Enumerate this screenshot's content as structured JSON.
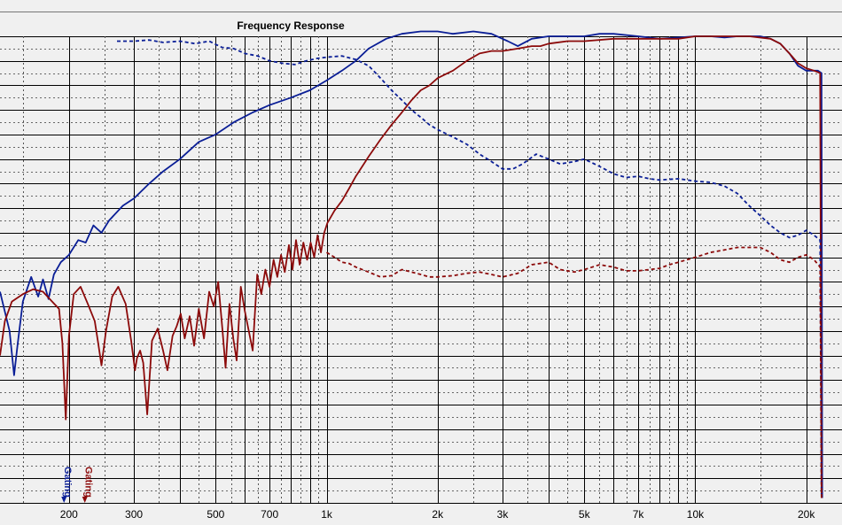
{
  "colors": {
    "background": "#f0f0f0",
    "grid": "#000000",
    "blue": "#0a1e96",
    "red": "#8c0a0a"
  },
  "chart_data": {
    "type": "line",
    "title": "Frequency Response",
    "x_scale": "log",
    "xlim": [
      130,
      25000
    ],
    "ylim": [
      0,
      19
    ],
    "y_tick_labels_visible": false,
    "x_tick_labels": [
      {
        "value": 200,
        "label": "200"
      },
      {
        "value": 300,
        "label": "300"
      },
      {
        "value": 500,
        "label": "500"
      },
      {
        "value": 700,
        "label": "700"
      },
      {
        "value": 1000,
        "label": "1k"
      },
      {
        "value": 2000,
        "label": "2k"
      },
      {
        "value": 3000,
        "label": "3k"
      },
      {
        "value": 5000,
        "label": "5k"
      },
      {
        "value": 7000,
        "label": "7k"
      },
      {
        "value": 10000,
        "label": "10k"
      },
      {
        "value": 20000,
        "label": "20k"
      }
    ],
    "minor_x_gridlines": [
      400,
      600,
      800,
      900,
      4000,
      6000,
      8000,
      9000
    ],
    "markers": [
      {
        "name": "Gating",
        "color": "blue",
        "x": 195
      },
      {
        "name": "Gating",
        "color": "red",
        "x": 222
      }
    ],
    "series": [
      {
        "style": "solid",
        "color": "blue",
        "points": [
          [
            130,
            8.6
          ],
          [
            138,
            7.0
          ],
          [
            142,
            5.2
          ],
          [
            145,
            6.4
          ],
          [
            150,
            8.2
          ],
          [
            158,
            9.2
          ],
          [
            165,
            8.4
          ],
          [
            170,
            9.1
          ],
          [
            176,
            8.3
          ],
          [
            182,
            9.3
          ],
          [
            190,
            9.8
          ],
          [
            200,
            10.1
          ],
          [
            212,
            10.7
          ],
          [
            222,
            10.6
          ],
          [
            233,
            11.3
          ],
          [
            245,
            11.0
          ],
          [
            257,
            11.5
          ],
          [
            280,
            12.1
          ],
          [
            300,
            12.4
          ],
          [
            330,
            13.0
          ],
          [
            360,
            13.5
          ],
          [
            400,
            14.0
          ],
          [
            450,
            14.7
          ],
          [
            500,
            15.0
          ],
          [
            560,
            15.5
          ],
          [
            630,
            15.9
          ],
          [
            700,
            16.2
          ],
          [
            800,
            16.5
          ],
          [
            900,
            16.8
          ],
          [
            1000,
            17.2
          ],
          [
            1100,
            17.6
          ],
          [
            1200,
            18.0
          ],
          [
            1300,
            18.5
          ],
          [
            1450,
            18.9
          ],
          [
            1600,
            19.1
          ],
          [
            1800,
            19.2
          ],
          [
            2000,
            19.2
          ],
          [
            2200,
            19.1
          ],
          [
            2500,
            19.2
          ],
          [
            2800,
            19.1
          ],
          [
            3100,
            18.8
          ],
          [
            3300,
            18.6
          ],
          [
            3600,
            18.9
          ],
          [
            4000,
            19.0
          ],
          [
            4500,
            19.0
          ],
          [
            5000,
            19.0
          ],
          [
            5500,
            19.1
          ],
          [
            6000,
            19.1
          ],
          [
            7000,
            19.0
          ],
          [
            8000,
            18.9
          ],
          [
            9000,
            18.95
          ],
          [
            10000,
            19.0
          ],
          [
            11000,
            19.0
          ],
          [
            12000,
            18.95
          ],
          [
            13000,
            19.0
          ],
          [
            14000,
            19.0
          ],
          [
            15000,
            19.0
          ],
          [
            16000,
            18.9
          ],
          [
            17000,
            18.7
          ],
          [
            18000,
            18.3
          ],
          [
            19000,
            17.8
          ],
          [
            20000,
            17.6
          ],
          [
            21500,
            17.6
          ],
          [
            22000,
            17.5
          ],
          [
            22100,
            0.2
          ]
        ]
      },
      {
        "style": "solid",
        "color": "red",
        "points": [
          [
            130,
            6.0
          ],
          [
            134,
            7.4
          ],
          [
            140,
            8.2
          ],
          [
            150,
            8.5
          ],
          [
            160,
            8.7
          ],
          [
            170,
            8.6
          ],
          [
            180,
            8.2
          ],
          [
            188,
            7.9
          ],
          [
            192,
            6.5
          ],
          [
            196,
            3.4
          ],
          [
            200,
            6.8
          ],
          [
            206,
            8.5
          ],
          [
            215,
            8.8
          ],
          [
            225,
            8.1
          ],
          [
            235,
            7.4
          ],
          [
            240,
            6.5
          ],
          [
            245,
            5.6
          ],
          [
            252,
            7.0
          ],
          [
            262,
            8.4
          ],
          [
            272,
            8.8
          ],
          [
            285,
            8.1
          ],
          [
            295,
            6.6
          ],
          [
            302,
            5.4
          ],
          [
            306,
            5.9
          ],
          [
            312,
            6.2
          ],
          [
            318,
            5.7
          ],
          [
            326,
            3.6
          ],
          [
            336,
            6.6
          ],
          [
            348,
            7.1
          ],
          [
            360,
            6.2
          ],
          [
            370,
            5.4
          ],
          [
            382,
            6.8
          ],
          [
            392,
            7.2
          ],
          [
            402,
            7.7
          ],
          [
            412,
            6.7
          ],
          [
            425,
            7.6
          ],
          [
            437,
            6.4
          ],
          [
            450,
            7.9
          ],
          [
            465,
            6.7
          ],
          [
            480,
            8.6
          ],
          [
            494,
            8.0
          ],
          [
            508,
            9.0
          ],
          [
            522,
            7.0
          ],
          [
            532,
            5.5
          ],
          [
            545,
            8.1
          ],
          [
            558,
            6.7
          ],
          [
            570,
            5.8
          ],
          [
            585,
            8.8
          ],
          [
            600,
            7.8
          ],
          [
            615,
            7.0
          ],
          [
            630,
            6.2
          ],
          [
            648,
            9.3
          ],
          [
            665,
            8.5
          ],
          [
            682,
            9.5
          ],
          [
            700,
            8.8
          ],
          [
            718,
            9.9
          ],
          [
            735,
            9.2
          ],
          [
            752,
            10.1
          ],
          [
            770,
            9.4
          ],
          [
            790,
            10.5
          ],
          [
            808,
            9.5
          ],
          [
            826,
            10.7
          ],
          [
            845,
            9.7
          ],
          [
            865,
            10.6
          ],
          [
            885,
            9.9
          ],
          [
            905,
            10.6
          ],
          [
            925,
            10.0
          ],
          [
            945,
            10.9
          ],
          [
            965,
            10.2
          ],
          [
            985,
            11.0
          ],
          [
            1005,
            11.4
          ],
          [
            1050,
            11.9
          ],
          [
            1100,
            12.3
          ],
          [
            1150,
            12.8
          ],
          [
            1200,
            13.3
          ],
          [
            1300,
            14.1
          ],
          [
            1400,
            14.8
          ],
          [
            1500,
            15.4
          ],
          [
            1600,
            15.9
          ],
          [
            1700,
            16.4
          ],
          [
            1800,
            16.8
          ],
          [
            1900,
            17.0
          ],
          [
            2000,
            17.3
          ],
          [
            2200,
            17.6
          ],
          [
            2400,
            18.0
          ],
          [
            2600,
            18.3
          ],
          [
            2800,
            18.4
          ],
          [
            3000,
            18.4
          ],
          [
            3300,
            18.5
          ],
          [
            3600,
            18.6
          ],
          [
            3800,
            18.6
          ],
          [
            4000,
            18.7
          ],
          [
            4500,
            18.8
          ],
          [
            5000,
            18.8
          ],
          [
            6000,
            18.9
          ],
          [
            7000,
            18.9
          ],
          [
            8000,
            18.9
          ],
          [
            9000,
            18.9
          ],
          [
            10000,
            19.0
          ],
          [
            12000,
            19.0
          ],
          [
            14000,
            19.0
          ],
          [
            16000,
            18.9
          ],
          [
            17000,
            18.7
          ],
          [
            18000,
            18.3
          ],
          [
            19000,
            17.9
          ],
          [
            20000,
            17.7
          ],
          [
            21000,
            17.6
          ],
          [
            21800,
            17.5
          ],
          [
            22000,
            0.2
          ]
        ]
      },
      {
        "style": "dashed",
        "color": "blue",
        "points": [
          [
            270,
            18.8
          ],
          [
            300,
            18.8
          ],
          [
            330,
            18.85
          ],
          [
            360,
            18.75
          ],
          [
            400,
            18.8
          ],
          [
            440,
            18.7
          ],
          [
            480,
            18.8
          ],
          [
            520,
            18.55
          ],
          [
            560,
            18.5
          ],
          [
            600,
            18.3
          ],
          [
            650,
            18.2
          ],
          [
            700,
            18.0
          ],
          [
            760,
            17.9
          ],
          [
            820,
            17.85
          ],
          [
            880,
            18.0
          ],
          [
            940,
            18.1
          ],
          [
            1000,
            18.15
          ],
          [
            1100,
            18.2
          ],
          [
            1200,
            18.05
          ],
          [
            1300,
            17.8
          ],
          [
            1400,
            17.3
          ],
          [
            1500,
            16.8
          ],
          [
            1600,
            16.4
          ],
          [
            1700,
            16.0
          ],
          [
            1800,
            15.7
          ],
          [
            1900,
            15.4
          ],
          [
            2000,
            15.2
          ],
          [
            2200,
            14.9
          ],
          [
            2400,
            14.6
          ],
          [
            2600,
            14.2
          ],
          [
            2800,
            13.9
          ],
          [
            3000,
            13.6
          ],
          [
            3200,
            13.6
          ],
          [
            3400,
            13.8
          ],
          [
            3700,
            14.2
          ],
          [
            4000,
            14.0
          ],
          [
            4300,
            13.8
          ],
          [
            4700,
            13.9
          ],
          [
            5000,
            14.0
          ],
          [
            5500,
            13.7
          ],
          [
            6000,
            13.4
          ],
          [
            6500,
            13.25
          ],
          [
            7000,
            13.3
          ],
          [
            7500,
            13.2
          ],
          [
            8000,
            13.15
          ],
          [
            9000,
            13.2
          ],
          [
            10000,
            13.1
          ],
          [
            11000,
            13.05
          ],
          [
            12000,
            12.9
          ],
          [
            13000,
            12.6
          ],
          [
            14000,
            12.1
          ],
          [
            15000,
            11.7
          ],
          [
            16000,
            11.3
          ],
          [
            17000,
            11.0
          ],
          [
            18000,
            10.8
          ],
          [
            19000,
            10.9
          ],
          [
            20000,
            11.1
          ],
          [
            21000,
            10.9
          ],
          [
            21800,
            10.7
          ],
          [
            22000,
            0.2
          ]
        ]
      },
      {
        "style": "dashed",
        "color": "red",
        "points": [
          [
            1000,
            10.2
          ],
          [
            1050,
            10.0
          ],
          [
            1100,
            9.8
          ],
          [
            1150,
            9.75
          ],
          [
            1200,
            9.6
          ],
          [
            1300,
            9.4
          ],
          [
            1400,
            9.2
          ],
          [
            1500,
            9.25
          ],
          [
            1600,
            9.5
          ],
          [
            1700,
            9.4
          ],
          [
            1800,
            9.3
          ],
          [
            1900,
            9.2
          ],
          [
            2000,
            9.2
          ],
          [
            2200,
            9.25
          ],
          [
            2400,
            9.35
          ],
          [
            2600,
            9.4
          ],
          [
            2800,
            9.3
          ],
          [
            3000,
            9.2
          ],
          [
            3300,
            9.35
          ],
          [
            3600,
            9.7
          ],
          [
            4000,
            9.8
          ],
          [
            4300,
            9.5
          ],
          [
            4700,
            9.4
          ],
          [
            5000,
            9.5
          ],
          [
            5500,
            9.7
          ],
          [
            6000,
            9.6
          ],
          [
            6500,
            9.45
          ],
          [
            7000,
            9.45
          ],
          [
            7500,
            9.5
          ],
          [
            8000,
            9.55
          ],
          [
            8500,
            9.7
          ],
          [
            9000,
            9.8
          ],
          [
            10000,
            10.0
          ],
          [
            11000,
            10.2
          ],
          [
            12000,
            10.3
          ],
          [
            13000,
            10.4
          ],
          [
            14000,
            10.4
          ],
          [
            15000,
            10.4
          ],
          [
            16000,
            10.2
          ],
          [
            17000,
            9.9
          ],
          [
            18000,
            9.8
          ],
          [
            19000,
            10.0
          ],
          [
            20000,
            10.1
          ],
          [
            21000,
            9.9
          ],
          [
            21800,
            9.6
          ],
          [
            22000,
            0.2
          ]
        ]
      }
    ]
  }
}
